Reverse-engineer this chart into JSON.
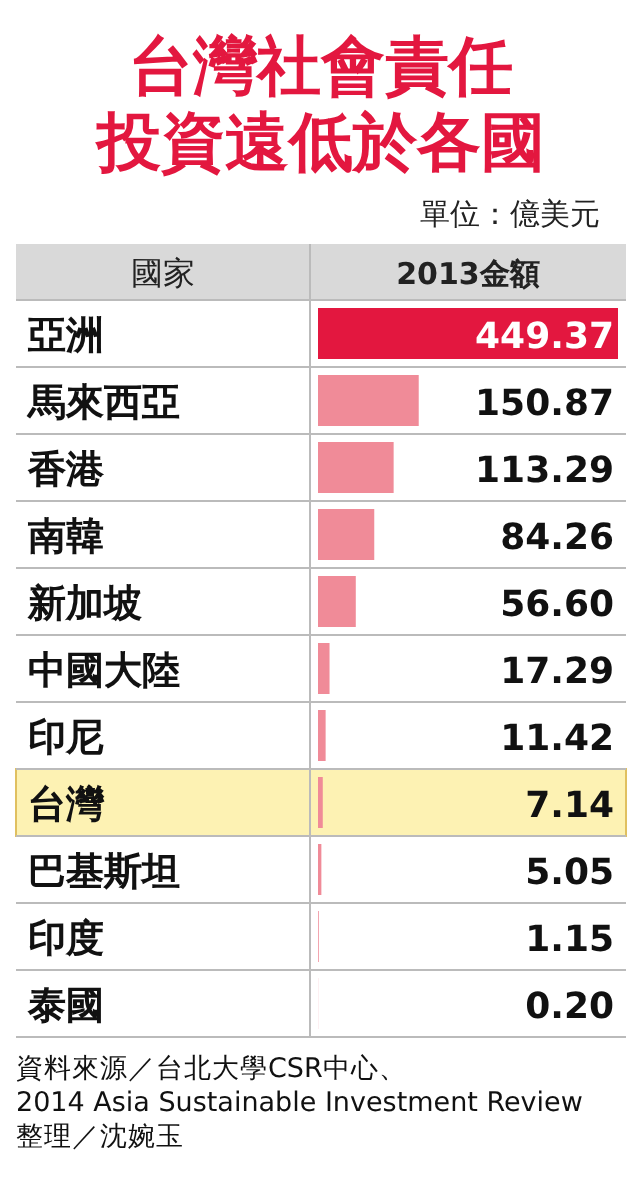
{
  "chart_data": {
    "type": "bar",
    "orientation": "horizontal",
    "title": "台灣社會責任投資遠低於各國",
    "subtitle": "單位：億美元",
    "ylabel": "國家",
    "xlabel": "2013金額",
    "categories": [
      "亞洲",
      "馬來西亞",
      "香港",
      "南韓",
      "新加坡",
      "中國大陸",
      "印尼",
      "台灣",
      "巴基斯坦",
      "印度",
      "泰國"
    ],
    "values": [
      449.37,
      150.87,
      113.29,
      84.26,
      56.6,
      17.29,
      11.42,
      7.14,
      5.05,
      1.15,
      0.2
    ],
    "value_labels": [
      "449.37",
      "150.87",
      "113.29",
      "84.26",
      "56.60",
      "17.29",
      "11.42",
      "7.14",
      "5.05",
      "1.15",
      "0.20"
    ],
    "colors": [
      "#e3173f",
      "#f08b98",
      "#f08b98",
      "#f08b98",
      "#f08b98",
      "#f08b98",
      "#f08b98",
      "#f08b98",
      "#f08b98",
      "#f08b98",
      "#f08b98"
    ],
    "bands": [
      {
        "axis": "y",
        "from": "台灣",
        "to": "台灣",
        "color": "#fdf2b3"
      }
    ],
    "annotations": [
      "資料來源／台北大學CSR中心、",
      "2014 Asia Sustainable Investment Review",
      "整理／沈婉玉"
    ]
  }
}
